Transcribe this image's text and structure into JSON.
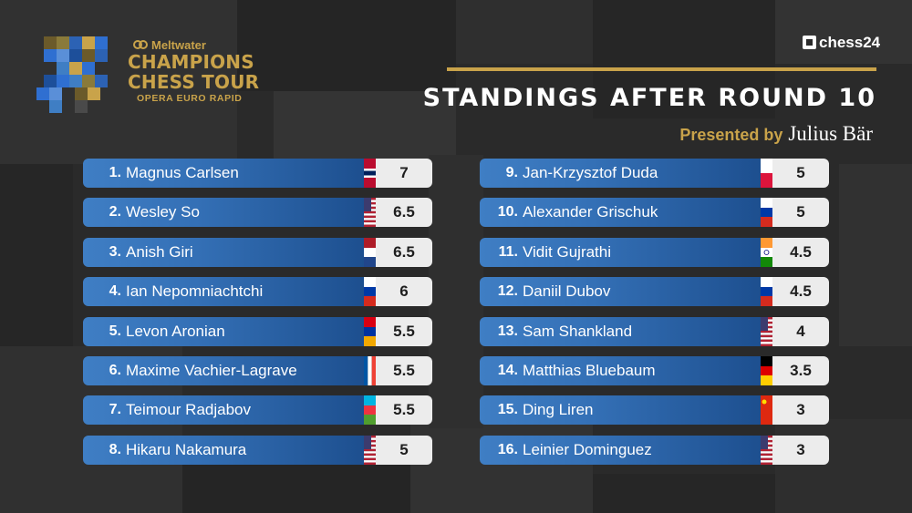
{
  "branding": {
    "sponsor": "Meltwater",
    "tour_line1": "CHAMPIONS",
    "tour_line2": "CHESS TOUR",
    "event": "OPERA EURO RAPID",
    "site": "chess24",
    "gold": "#c9a34a"
  },
  "header": {
    "title": "STANDINGS AFTER ROUND 10",
    "presented_by": "Presented by",
    "presenter": "Julius Bär"
  },
  "standings_left": [
    {
      "rank": "1.",
      "name": "Magnus Carlsen",
      "score": "7",
      "flag": "norway"
    },
    {
      "rank": "2.",
      "name": "Wesley So",
      "score": "6.5",
      "flag": "usa"
    },
    {
      "rank": "3.",
      "name": "Anish Giri",
      "score": "6.5",
      "flag": "netherlands"
    },
    {
      "rank": "4.",
      "name": "Ian Nepomniachtchi",
      "score": "6",
      "flag": "russia"
    },
    {
      "rank": "5.",
      "name": "Levon Aronian",
      "score": "5.5",
      "flag": "armenia"
    },
    {
      "rank": "6.",
      "name": "Maxime Vachier-Lagrave",
      "score": "5.5",
      "flag": "france"
    },
    {
      "rank": "7.",
      "name": "Teimour Radjabov",
      "score": "5.5",
      "flag": "azerbaijan"
    },
    {
      "rank": "8.",
      "name": "Hikaru Nakamura",
      "score": "5",
      "flag": "usa"
    }
  ],
  "standings_right": [
    {
      "rank": "9.",
      "name": "Jan-Krzysztof Duda",
      "score": "5",
      "flag": "poland"
    },
    {
      "rank": "10.",
      "name": "Alexander Grischuk",
      "score": "5",
      "flag": "russia"
    },
    {
      "rank": "11.",
      "name": "Vidit Gujrathi",
      "score": "4.5",
      "flag": "india"
    },
    {
      "rank": "12.",
      "name": "Daniil Dubov",
      "score": "4.5",
      "flag": "russia"
    },
    {
      "rank": "13.",
      "name": "Sam Shankland",
      "score": "4",
      "flag": "usa"
    },
    {
      "rank": "14.",
      "name": "Matthias Bluebaum",
      "score": "3.5",
      "flag": "germany"
    },
    {
      "rank": "15.",
      "name": "Ding Liren",
      "score": "3",
      "flag": "china"
    },
    {
      "rank": "16.",
      "name": "Leinier Dominguez",
      "score": "3",
      "flag": "usa"
    }
  ]
}
